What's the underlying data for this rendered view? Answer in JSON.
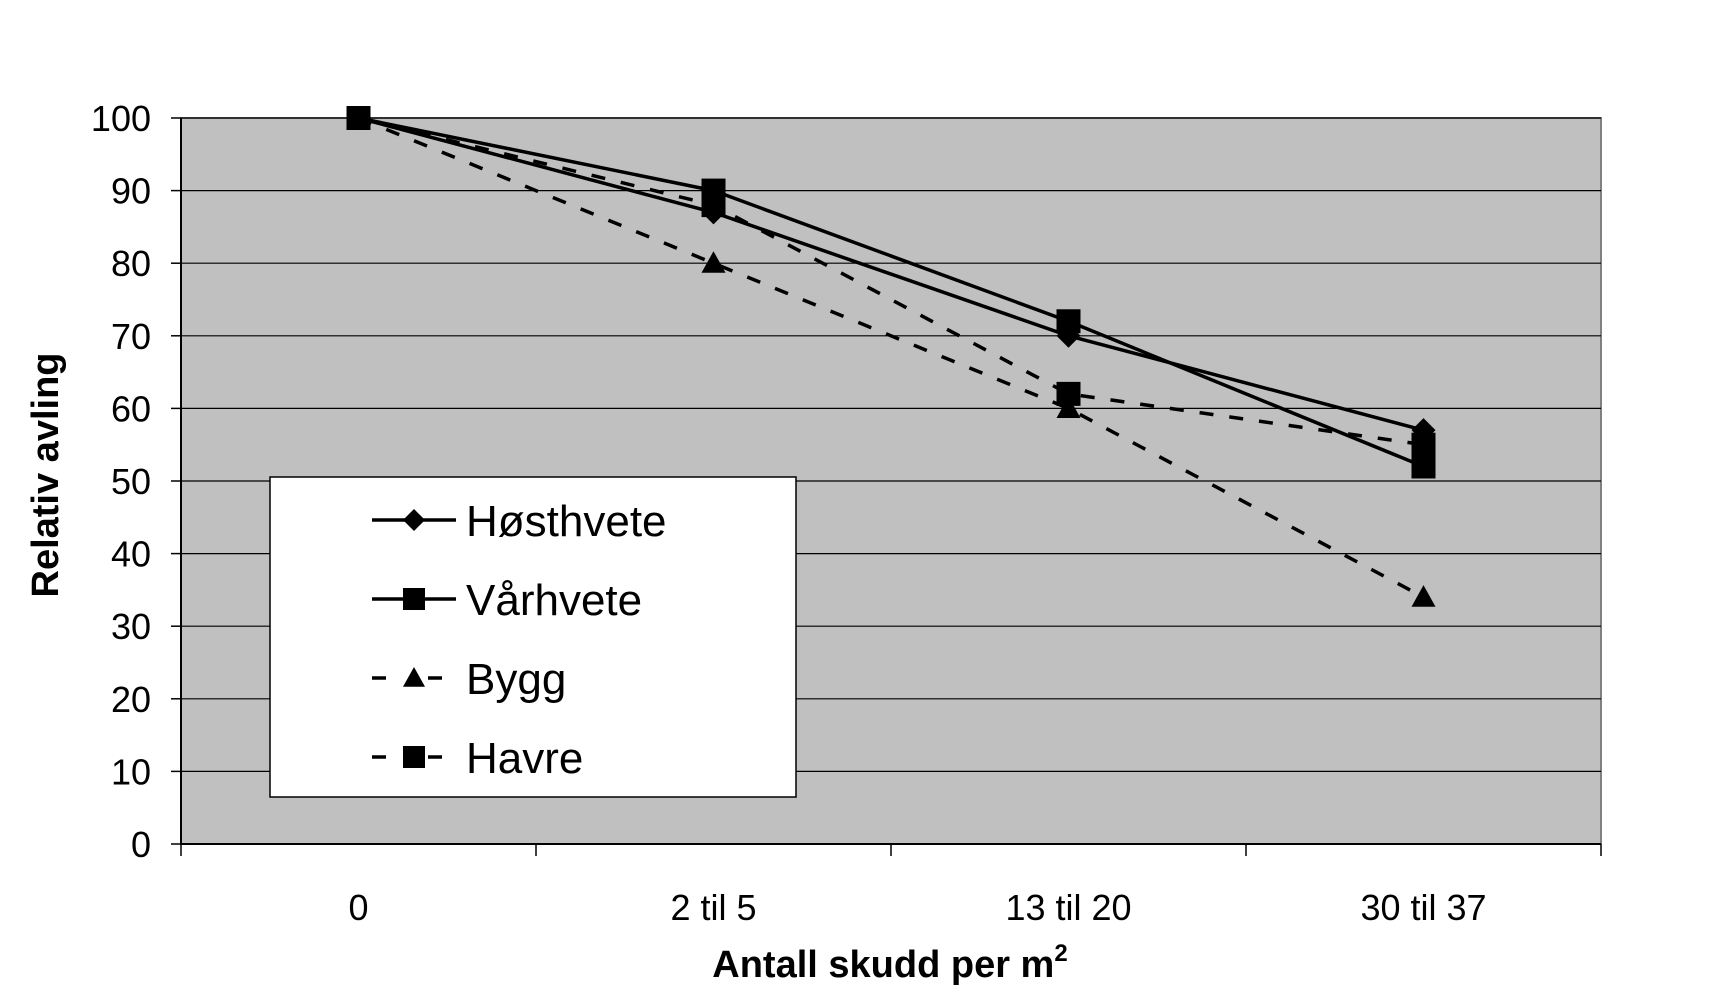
{
  "chart_data": {
    "type": "line",
    "categories": [
      "0",
      "2 til 5",
      "13 til 20",
      "30 til 37"
    ],
    "xlabel": "Antall skudd per m",
    "xlabel_superscript": "2",
    "ylabel": "Relativ avling",
    "ylim": [
      0,
      100
    ],
    "yticks": [
      0,
      10,
      20,
      30,
      40,
      50,
      60,
      70,
      80,
      90,
      100
    ],
    "grid": true,
    "plot_background": "#c0c0c0",
    "legend_position": "lower-left",
    "series": [
      {
        "name": "Høsthvete",
        "values": [
          100,
          87,
          70,
          57
        ],
        "marker": "diamond",
        "line": "solid",
        "color": "#000000"
      },
      {
        "name": "Vårhvete",
        "values": [
          100,
          90,
          72,
          52
        ],
        "marker": "square",
        "line": "solid",
        "color": "#000000"
      },
      {
        "name": "Bygg",
        "values": [
          100,
          80,
          60,
          34
        ],
        "marker": "triangle",
        "line": "dashed",
        "color": "#000000"
      },
      {
        "name": "Havre",
        "values": [
          100,
          88,
          62,
          55
        ],
        "marker": "square",
        "line": "dashed",
        "color": "#000000"
      }
    ]
  }
}
